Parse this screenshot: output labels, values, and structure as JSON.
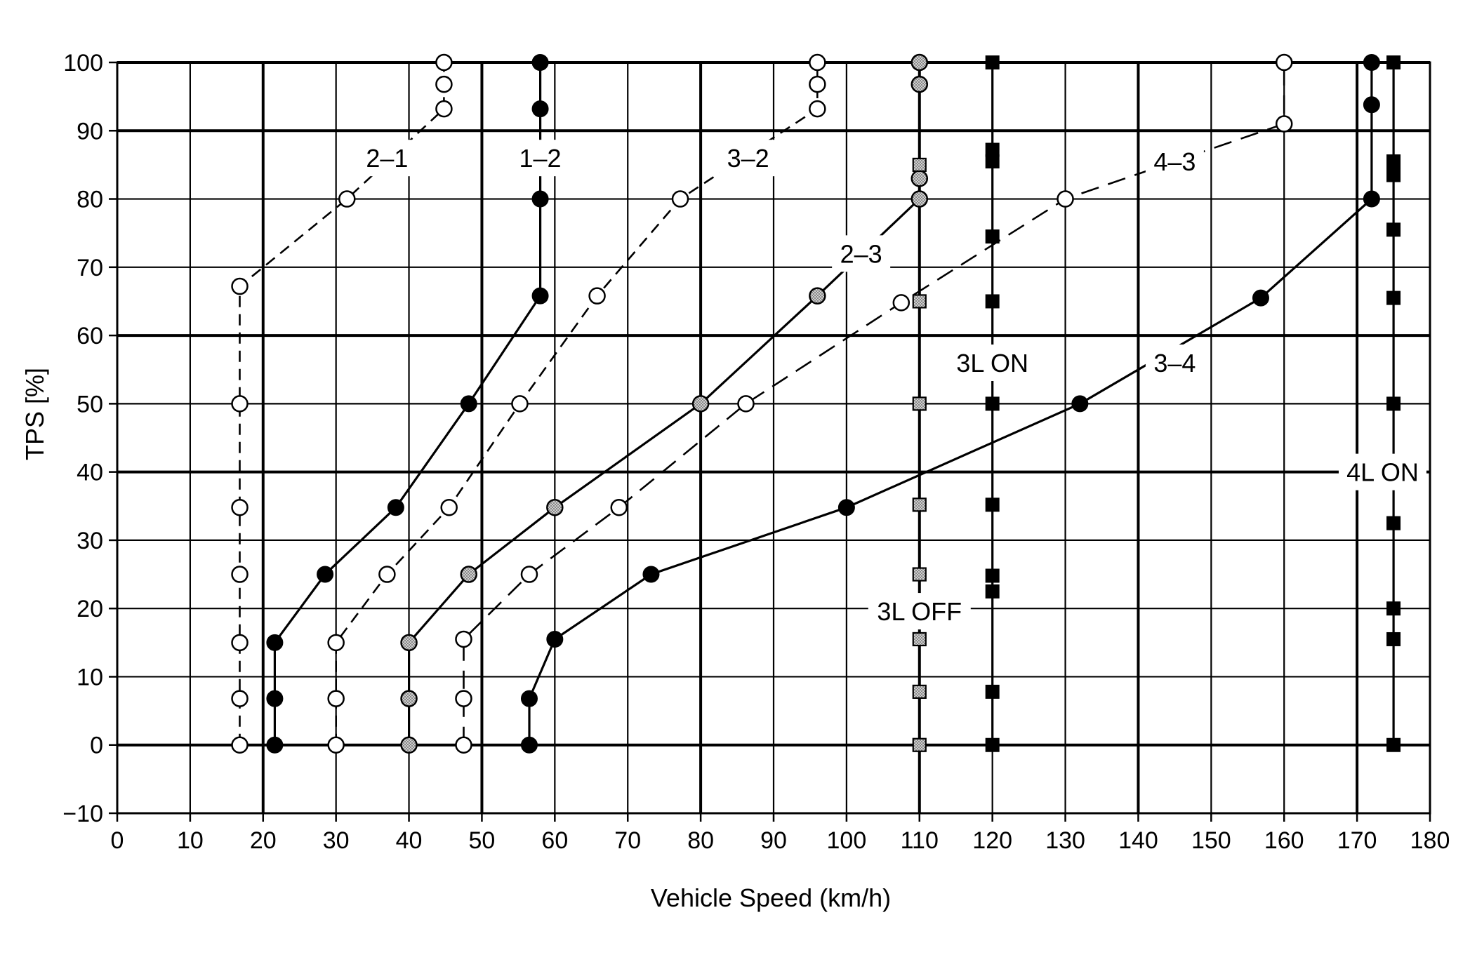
{
  "chart_data": {
    "type": "line",
    "title": "",
    "xlabel": "Vehicle Speed (km/h)",
    "ylabel": "TPS [%]",
    "xlim": [
      0,
      180
    ],
    "ylim": [
      -10,
      100
    ],
    "xticks": [
      "0",
      "10",
      "20",
      "30",
      "40",
      "50",
      "60",
      "70",
      "80",
      "90",
      "100",
      "110",
      "120",
      "130",
      "140",
      "150",
      "160",
      "170",
      "180"
    ],
    "yticks": [
      "-10",
      "0",
      "10",
      "20",
      "30",
      "40",
      "50",
      "60",
      "70",
      "80",
      "90",
      "100"
    ],
    "grid": true,
    "series": [
      {
        "name": "2-1",
        "line": "dashed",
        "marker": "open-circle",
        "points": [
          [
            16.8,
            0
          ],
          [
            16.8,
            6.8
          ],
          [
            16.8,
            15
          ],
          [
            16.8,
            25
          ],
          [
            16.8,
            34.8
          ],
          [
            16.8,
            50
          ],
          [
            16.8,
            67.2
          ],
          [
            31.5,
            80
          ],
          [
            44.8,
            93.2
          ],
          [
            44.8,
            96.8
          ],
          [
            44.8,
            100
          ]
        ]
      },
      {
        "name": "1-2",
        "line": "solid",
        "marker": "filled-circle",
        "points": [
          [
            21.6,
            0
          ],
          [
            21.6,
            6.8
          ],
          [
            21.6,
            15
          ],
          [
            28.5,
            25
          ],
          [
            38.2,
            34.8
          ],
          [
            48.2,
            50
          ],
          [
            58,
            65.8
          ],
          [
            58,
            80
          ],
          [
            58,
            93.2
          ],
          [
            58,
            100
          ]
        ]
      },
      {
        "name": "3-2",
        "line": "dashed",
        "marker": "open-circle",
        "points": [
          [
            30,
            0
          ],
          [
            30,
            6.8
          ],
          [
            30,
            15
          ],
          [
            37,
            25
          ],
          [
            45.5,
            34.8
          ],
          [
            55.2,
            50
          ],
          [
            65.8,
            65.8
          ],
          [
            77.2,
            80
          ],
          [
            96,
            93.2
          ],
          [
            96,
            96.8
          ],
          [
            96,
            100
          ]
        ]
      },
      {
        "name": "2-3",
        "line": "solid",
        "marker": "dotted-circle",
        "points": [
          [
            40,
            0
          ],
          [
            40,
            6.8
          ],
          [
            40,
            15
          ],
          [
            48.2,
            25
          ],
          [
            60,
            34.8
          ],
          [
            80,
            50
          ],
          [
            96,
            65.8
          ],
          [
            110,
            80
          ],
          [
            110,
            83
          ],
          [
            110,
            96.8
          ],
          [
            110,
            100
          ]
        ]
      },
      {
        "name": "4-3",
        "line": "dashed",
        "marker": "open-circle",
        "points": [
          [
            47.5,
            0
          ],
          [
            47.5,
            6.8
          ],
          [
            47.5,
            15.5
          ],
          [
            56.5,
            25
          ],
          [
            68.8,
            34.8
          ],
          [
            86.2,
            50
          ],
          [
            107.5,
            64.8
          ],
          [
            130,
            80
          ],
          [
            160,
            91
          ],
          [
            160,
            100
          ]
        ]
      },
      {
        "name": "3-4",
        "line": "solid",
        "marker": "filled-circle",
        "points": [
          [
            56.5,
            0
          ],
          [
            56.5,
            6.8
          ],
          [
            60,
            15.5
          ],
          [
            73.2,
            25
          ],
          [
            100,
            34.8
          ],
          [
            132,
            50
          ],
          [
            156.8,
            65.5
          ],
          [
            172,
            80
          ],
          [
            172,
            93.8
          ],
          [
            172,
            100
          ]
        ]
      },
      {
        "name": "3L OFF",
        "line": "solid",
        "marker": "dotted-square",
        "points": [
          [
            110,
            0
          ],
          [
            110,
            7.8
          ],
          [
            110,
            15.5
          ],
          [
            110,
            25
          ],
          [
            110,
            35.2
          ],
          [
            110,
            50
          ],
          [
            110,
            65
          ],
          [
            110,
            85
          ]
        ]
      },
      {
        "name": "3L ON",
        "line": "solid",
        "marker": "filled-square",
        "points": [
          [
            120,
            0
          ],
          [
            120,
            7.8
          ],
          [
            120,
            22.5
          ],
          [
            120,
            24.8
          ],
          [
            120,
            35.2
          ],
          [
            120,
            50
          ],
          [
            120,
            65
          ],
          [
            120,
            74.5
          ],
          [
            120,
            85.5
          ],
          [
            120,
            87.2
          ],
          [
            120,
            100
          ]
        ]
      },
      {
        "name": "4L ON",
        "line": "solid",
        "marker": "filled-square",
        "points": [
          [
            175,
            0
          ],
          [
            175,
            15.5
          ],
          [
            175,
            20
          ],
          [
            175,
            32.5
          ],
          [
            175,
            50
          ],
          [
            175,
            65.5
          ],
          [
            175,
            75.5
          ],
          [
            175,
            83.5
          ],
          [
            175,
            85.5
          ],
          [
            175,
            100
          ]
        ]
      }
    ],
    "annotations": [
      {
        "text": "2–1",
        "x": 37,
        "y": 86
      },
      {
        "text": "1–2",
        "x": 58,
        "y": 86
      },
      {
        "text": "3–2",
        "x": 86.5,
        "y": 86
      },
      {
        "text": "2–3",
        "x": 102,
        "y": 72
      },
      {
        "text": "4–3",
        "x": 145,
        "y": 85.5
      },
      {
        "text": "3–4",
        "x": 145,
        "y": 56
      },
      {
        "text": "3L ON",
        "x": 120,
        "y": 56
      },
      {
        "text": "3L OFF",
        "x": 110,
        "y": 19.6
      },
      {
        "text": "4L ON",
        "x": 173.5,
        "y": 40
      }
    ]
  }
}
